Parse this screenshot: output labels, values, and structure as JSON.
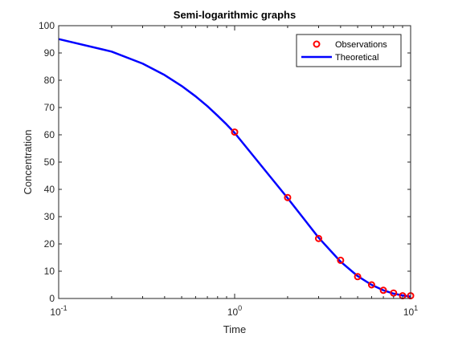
{
  "chart_data": {
    "type": "line",
    "title": "Semi-logarithmic graphs",
    "xlabel": "Time",
    "ylabel": "Concentration",
    "xscale": "log",
    "xlim": [
      0.1,
      10
    ],
    "ylim": [
      0,
      100
    ],
    "x_ticks": [
      {
        "value": 0.1,
        "base": "10",
        "exp": "-1"
      },
      {
        "value": 1,
        "base": "10",
        "exp": "0"
      },
      {
        "value": 10,
        "base": "10",
        "exp": "1"
      }
    ],
    "y_ticks": [
      {
        "value": 0,
        "label": "0"
      },
      {
        "value": 10,
        "label": "10"
      },
      {
        "value": 20,
        "label": "20"
      },
      {
        "value": 30,
        "label": "30"
      },
      {
        "value": 40,
        "label": "40"
      },
      {
        "value": 50,
        "label": "50"
      },
      {
        "value": 60,
        "label": "60"
      },
      {
        "value": 70,
        "label": "70"
      },
      {
        "value": 80,
        "label": "80"
      },
      {
        "value": 90,
        "label": "90"
      },
      {
        "value": 100,
        "label": "100"
      }
    ],
    "grid": false,
    "legend_position": "top-right",
    "series": [
      {
        "name": "Observations",
        "style": "markers",
        "marker": "circle",
        "color": "#ff0000",
        "x": [
          1,
          2,
          3,
          4,
          5,
          6,
          7,
          8,
          9,
          10
        ],
        "y": [
          61,
          37,
          22,
          14,
          8,
          5,
          3,
          2,
          1,
          1
        ]
      },
      {
        "name": "Theoretical",
        "style": "line",
        "color": "#0000ff",
        "x": [
          0.1,
          0.2,
          0.3,
          0.4,
          0.5,
          0.6,
          0.7,
          0.8,
          0.9,
          1,
          2,
          3,
          4,
          5,
          6,
          7,
          8,
          9,
          10
        ],
        "y": [
          95.1,
          90.5,
          86.1,
          81.9,
          77.9,
          74.1,
          70.5,
          67.0,
          63.8,
          60.7,
          36.8,
          22.3,
          13.5,
          8.2,
          5.0,
          3.0,
          1.8,
          1.1,
          0.7
        ]
      }
    ]
  }
}
